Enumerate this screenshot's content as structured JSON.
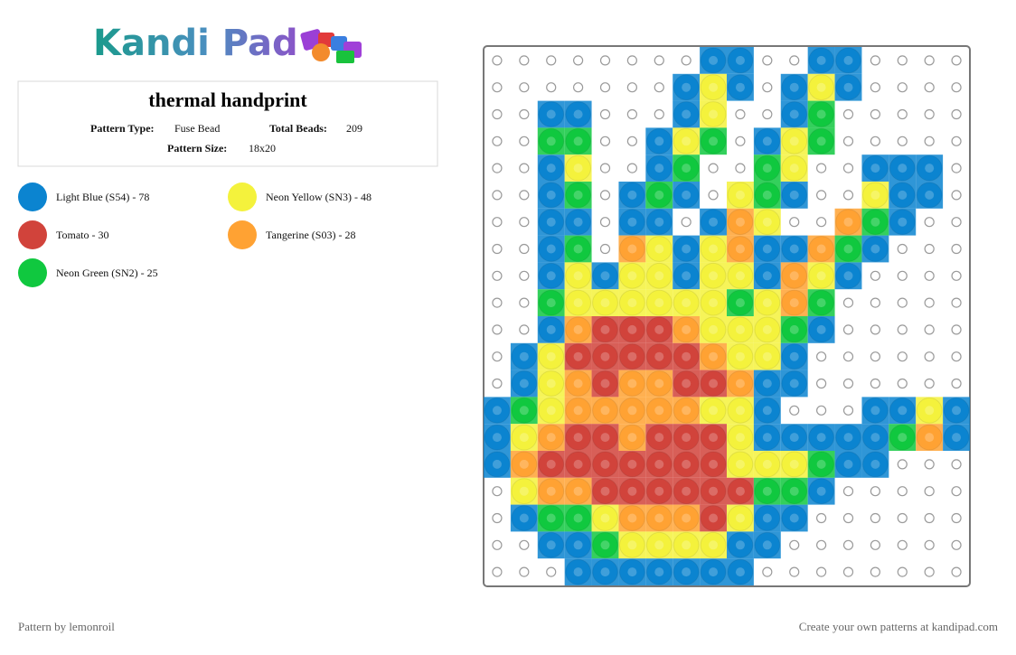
{
  "header": {
    "logo": "Kandi Pad"
  },
  "info": {
    "title": "thermal handprint",
    "pattern_type_label": "Pattern Type:",
    "pattern_type": "Fuse Bead",
    "total_beads_label": "Total Beads:",
    "total_beads": "209",
    "pattern_size_label": "Pattern Size:",
    "pattern_size": "18x20"
  },
  "legend": [
    {
      "label": "Light Blue (S54) - 78",
      "color": "#0b84d0"
    },
    {
      "label": "Neon Yellow (SN3) - 48",
      "color": "#f4f23c"
    },
    {
      "label": "Tomato - 30",
      "color": "#d1433b"
    },
    {
      "label": "Tangerine (S03) - 28",
      "color": "#ffa233"
    },
    {
      "label": "Neon Green (SN2) - 25",
      "color": "#10c83f"
    }
  ],
  "grid": [
    [
      null,
      null,
      null,
      null,
      null,
      null,
      null,
      null,
      "#0b84d0",
      "#0b84d0",
      null,
      null,
      "#0b84d0",
      "#0b84d0",
      null,
      null,
      null,
      null
    ],
    [
      null,
      null,
      null,
      null,
      null,
      null,
      null,
      "#0b84d0",
      "#f4f23c",
      "#0b84d0",
      null,
      "#0b84d0",
      "#f4f23c",
      "#0b84d0",
      null,
      null,
      null,
      null
    ],
    [
      null,
      null,
      "#0b84d0",
      "#0b84d0",
      null,
      null,
      null,
      "#0b84d0",
      "#f4f23c",
      null,
      null,
      "#0b84d0",
      "#10c83f",
      null,
      null,
      null,
      null,
      null
    ],
    [
      null,
      null,
      "#10c83f",
      "#10c83f",
      null,
      null,
      "#0b84d0",
      "#f4f23c",
      "#10c83f",
      null,
      "#0b84d0",
      "#f4f23c",
      "#10c83f",
      null,
      null,
      null,
      null,
      null
    ],
    [
      null,
      null,
      "#0b84d0",
      "#f4f23c",
      null,
      null,
      "#0b84d0",
      "#10c83f",
      null,
      null,
      "#10c83f",
      "#f4f23c",
      null,
      null,
      "#0b84d0",
      "#0b84d0",
      "#0b84d0",
      null
    ],
    [
      null,
      null,
      "#0b84d0",
      "#10c83f",
      null,
      "#0b84d0",
      "#10c83f",
      "#0b84d0",
      null,
      "#f4f23c",
      "#10c83f",
      "#0b84d0",
      null,
      null,
      "#f4f23c",
      "#0b84d0",
      "#0b84d0",
      null
    ],
    [
      null,
      null,
      "#0b84d0",
      "#0b84d0",
      null,
      "#0b84d0",
      "#0b84d0",
      null,
      "#0b84d0",
      "#ffa233",
      "#f4f23c",
      null,
      null,
      "#ffa233",
      "#10c83f",
      "#0b84d0",
      null,
      null
    ],
    [
      null,
      null,
      "#0b84d0",
      "#10c83f",
      null,
      "#ffa233",
      "#f4f23c",
      "#0b84d0",
      "#f4f23c",
      "#ffa233",
      "#0b84d0",
      "#0b84d0",
      "#ffa233",
      "#10c83f",
      "#0b84d0",
      null,
      null,
      null
    ],
    [
      null,
      null,
      "#0b84d0",
      "#f4f23c",
      "#0b84d0",
      "#f4f23c",
      "#f4f23c",
      "#0b84d0",
      "#f4f23c",
      "#f4f23c",
      "#0b84d0",
      "#ffa233",
      "#f4f23c",
      "#0b84d0",
      null,
      null,
      null,
      null
    ],
    [
      null,
      null,
      "#10c83f",
      "#f4f23c",
      "#f4f23c",
      "#f4f23c",
      "#f4f23c",
      "#f4f23c",
      "#f4f23c",
      "#10c83f",
      "#f4f23c",
      "#ffa233",
      "#10c83f",
      null,
      null,
      null,
      null,
      null
    ],
    [
      null,
      null,
      "#0b84d0",
      "#ffa233",
      "#d1433b",
      "#d1433b",
      "#d1433b",
      "#ffa233",
      "#f4f23c",
      "#f4f23c",
      "#f4f23c",
      "#10c83f",
      "#0b84d0",
      null,
      null,
      null,
      null,
      null
    ],
    [
      null,
      "#0b84d0",
      "#f4f23c",
      "#d1433b",
      "#d1433b",
      "#d1433b",
      "#d1433b",
      "#d1433b",
      "#ffa233",
      "#f4f23c",
      "#f4f23c",
      "#0b84d0",
      null,
      null,
      null,
      null,
      null,
      null
    ],
    [
      null,
      "#0b84d0",
      "#f4f23c",
      "#ffa233",
      "#d1433b",
      "#ffa233",
      "#ffa233",
      "#d1433b",
      "#d1433b",
      "#ffa233",
      "#0b84d0",
      "#0b84d0",
      null,
      null,
      null,
      null,
      null,
      null
    ],
    [
      "#0b84d0",
      "#10c83f",
      "#f4f23c",
      "#ffa233",
      "#ffa233",
      "#ffa233",
      "#ffa233",
      "#ffa233",
      "#f4f23c",
      "#f4f23c",
      "#0b84d0",
      null,
      null,
      null,
      "#0b84d0",
      "#0b84d0",
      "#f4f23c",
      "#0b84d0"
    ],
    [
      "#0b84d0",
      "#f4f23c",
      "#ffa233",
      "#d1433b",
      "#d1433b",
      "#ffa233",
      "#d1433b",
      "#d1433b",
      "#d1433b",
      "#f4f23c",
      "#0b84d0",
      "#0b84d0",
      "#0b84d0",
      "#0b84d0",
      "#0b84d0",
      "#10c83f",
      "#ffa233",
      "#0b84d0"
    ],
    [
      "#0b84d0",
      "#ffa233",
      "#d1433b",
      "#d1433b",
      "#d1433b",
      "#d1433b",
      "#d1433b",
      "#d1433b",
      "#d1433b",
      "#f4f23c",
      "#f4f23c",
      "#f4f23c",
      "#10c83f",
      "#0b84d0",
      "#0b84d0",
      null,
      null,
      null
    ],
    [
      null,
      "#f4f23c",
      "#ffa233",
      "#ffa233",
      "#d1433b",
      "#d1433b",
      "#d1433b",
      "#d1433b",
      "#d1433b",
      "#d1433b",
      "#10c83f",
      "#10c83f",
      "#0b84d0",
      null,
      null,
      null,
      null,
      null
    ],
    [
      null,
      "#0b84d0",
      "#10c83f",
      "#10c83f",
      "#f4f23c",
      "#ffa233",
      "#ffa233",
      "#ffa233",
      "#d1433b",
      "#f4f23c",
      "#0b84d0",
      "#0b84d0",
      null,
      null,
      null,
      null,
      null,
      null
    ],
    [
      null,
      null,
      "#0b84d0",
      "#0b84d0",
      "#10c83f",
      "#f4f23c",
      "#f4f23c",
      "#f4f23c",
      "#f4f23c",
      "#0b84d0",
      "#0b84d0",
      null,
      null,
      null,
      null,
      null,
      null,
      null
    ],
    [
      null,
      null,
      null,
      "#0b84d0",
      "#0b84d0",
      "#0b84d0",
      "#0b84d0",
      "#0b84d0",
      "#0b84d0",
      "#0b84d0",
      null,
      null,
      null,
      null,
      null,
      null,
      null,
      null
    ]
  ],
  "footer": {
    "credit": "Pattern by lemonroil",
    "promo": "Create your own patterns at kandipad.com"
  }
}
